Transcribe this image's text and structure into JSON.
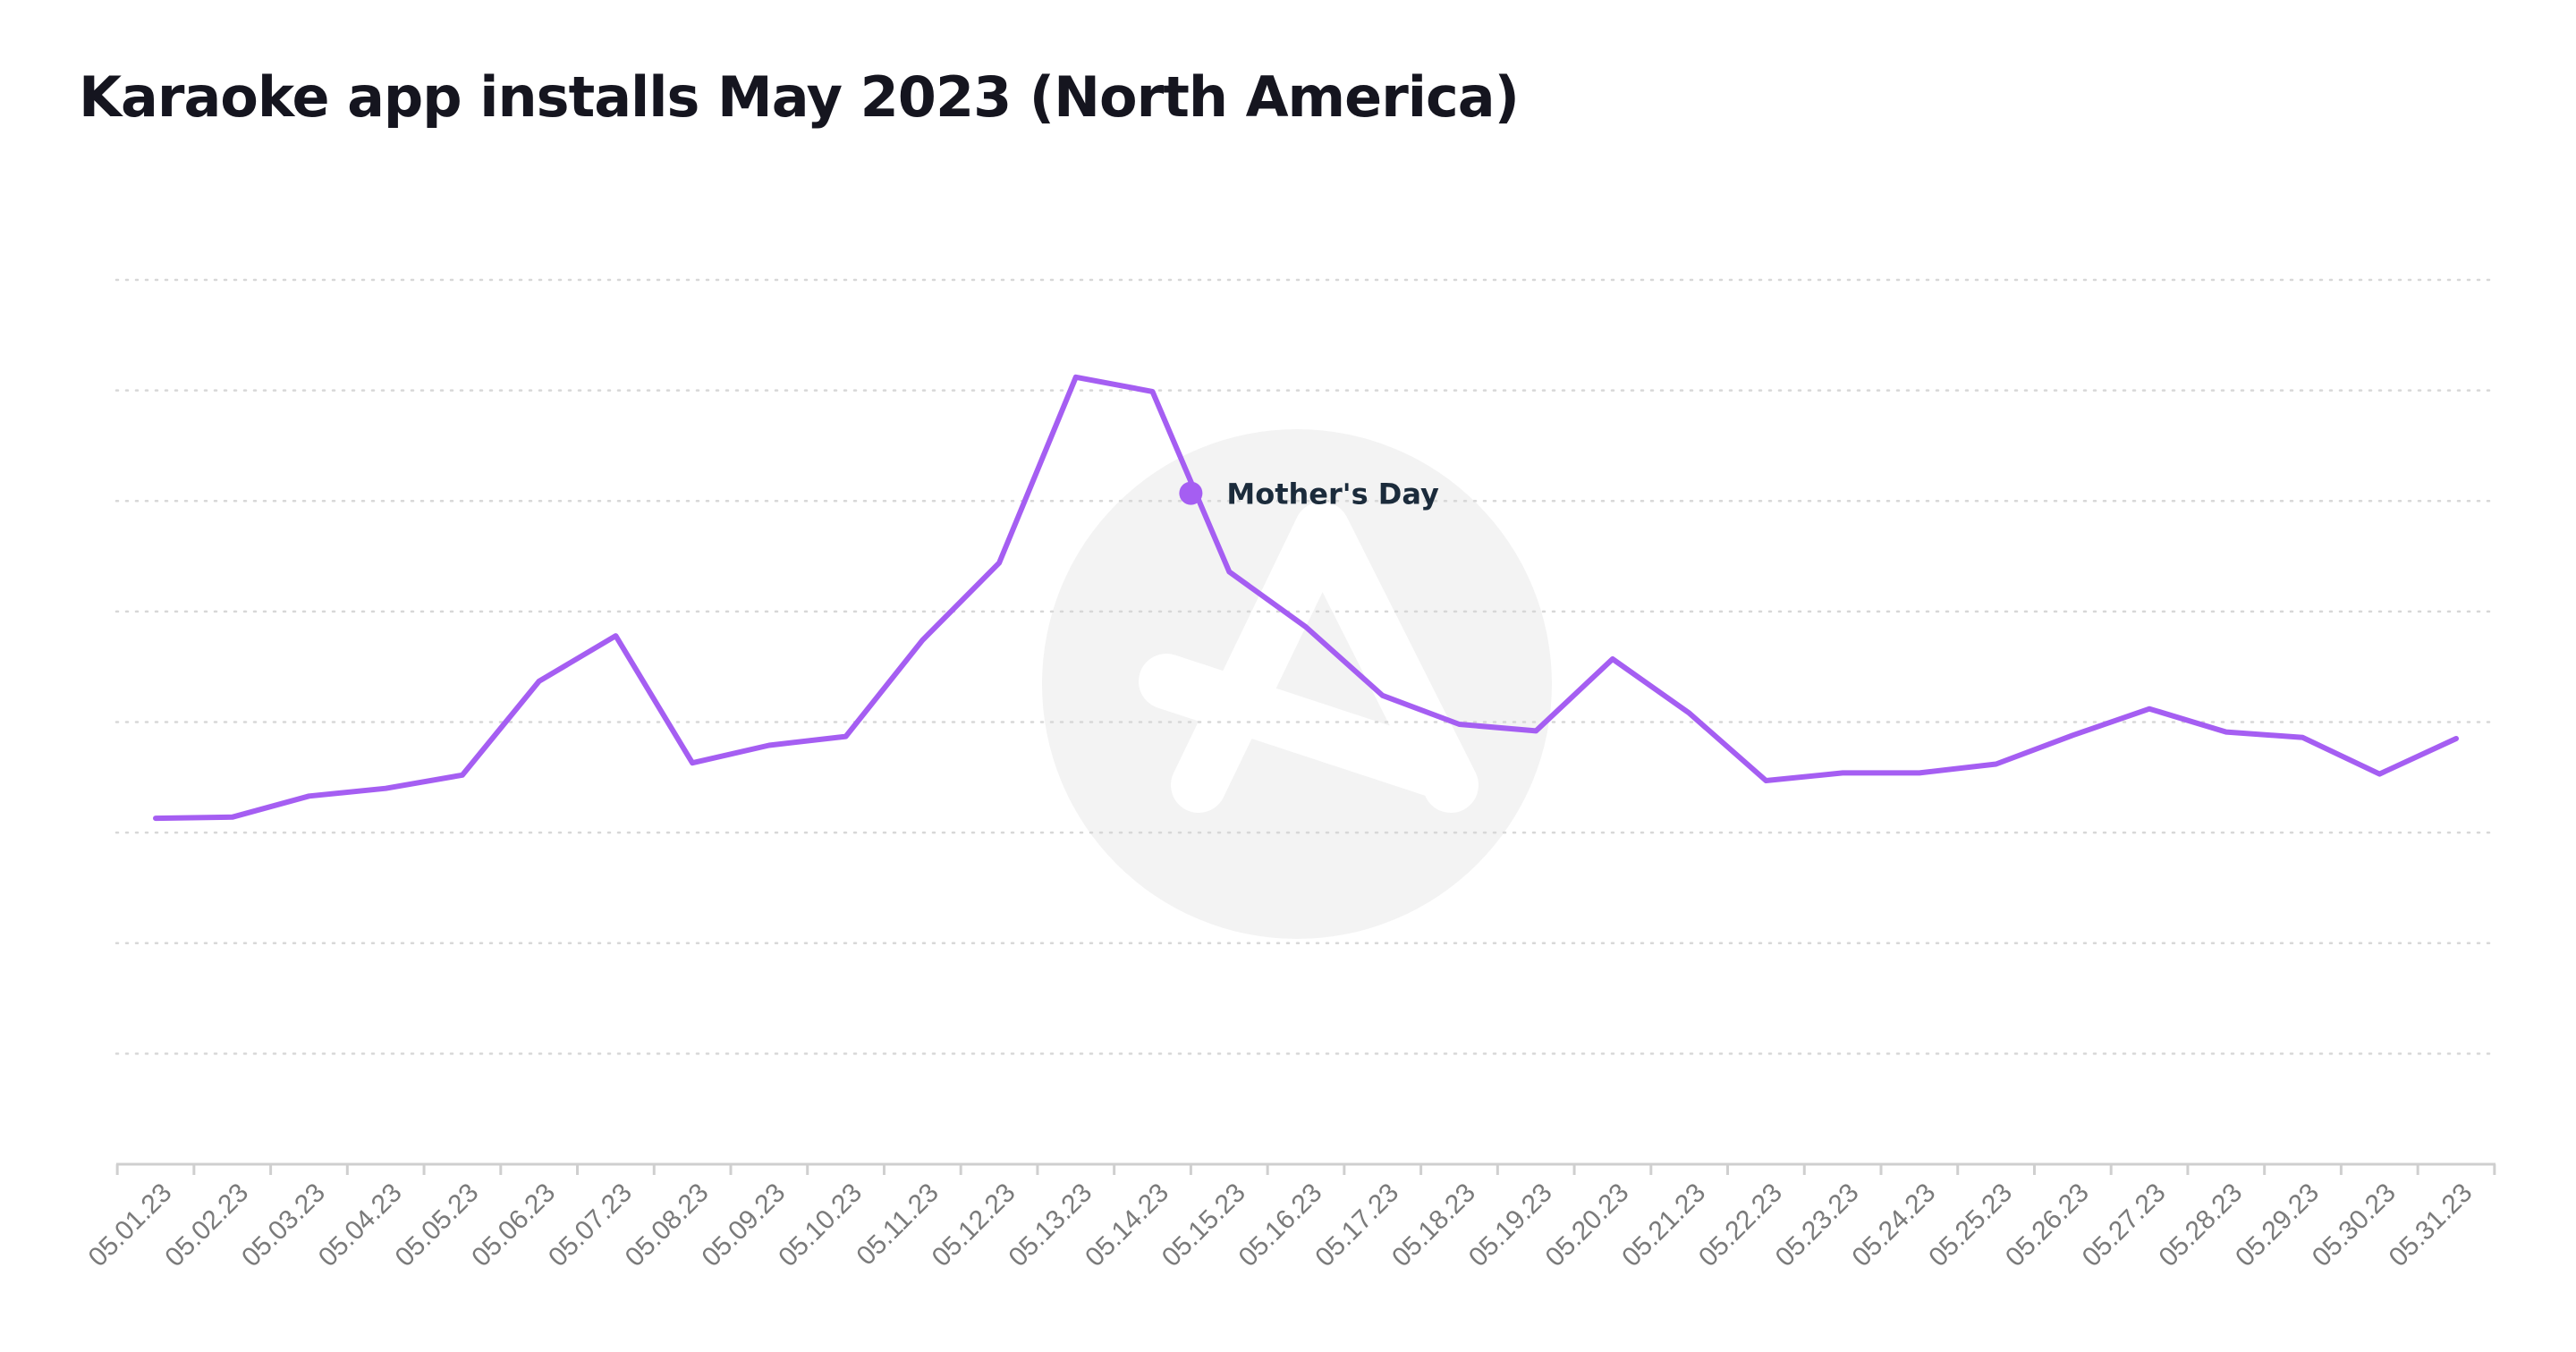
{
  "chart_data": {
    "type": "line",
    "title": "Karaoke app installs May 2023 (North America)",
    "xlabel": "",
    "ylabel": "",
    "grid": true,
    "y_axis_labels_shown": false,
    "x": [
      "05.01.23",
      "05.02.23",
      "05.03.23",
      "05.04.23",
      "05.05.23",
      "05.06.23",
      "05.07.23",
      "05.08.23",
      "05.09.23",
      "05.10.23",
      "05.11.23",
      "05.12.23",
      "05.13.23",
      "05.14.23",
      "05.15.23",
      "05.16.23",
      "05.17.23",
      "05.18.23",
      "05.19.23",
      "05.20.23",
      "05.21.23",
      "05.22.23",
      "05.23.23",
      "05.24.23",
      "05.25.23",
      "05.26.23",
      "05.27.23",
      "05.28.23",
      "05.29.23",
      "05.30.23",
      "05.31.23"
    ],
    "ylim": [
      0,
      8
    ],
    "series": [
      {
        "color": "#a55ef2",
        "values": [
          3.13,
          3.14,
          3.33,
          3.4,
          3.52,
          4.37,
          4.78,
          3.63,
          3.79,
          3.87,
          4.74,
          5.44,
          7.12,
          6.99,
          5.36,
          4.86,
          4.24,
          3.98,
          3.92,
          4.57,
          4.08,
          3.47,
          3.54,
          3.54,
          3.62,
          3.88,
          4.12,
          3.91,
          3.86,
          3.53,
          3.85
        ]
      }
    ],
    "annotations": [
      {
        "text": "Mother's Day",
        "x": "05.14.23",
        "y": 6.07,
        "x_offset": 0.5
      }
    ],
    "colors": {
      "line": "#a55ef2",
      "annotation_dot": "#a55ef2",
      "annotation_text": "#1b2b3b",
      "grid": "#d7d7d7",
      "axis": "#cfcfcf",
      "tick_label": "#7a7a7a",
      "title": "#15151f"
    }
  }
}
